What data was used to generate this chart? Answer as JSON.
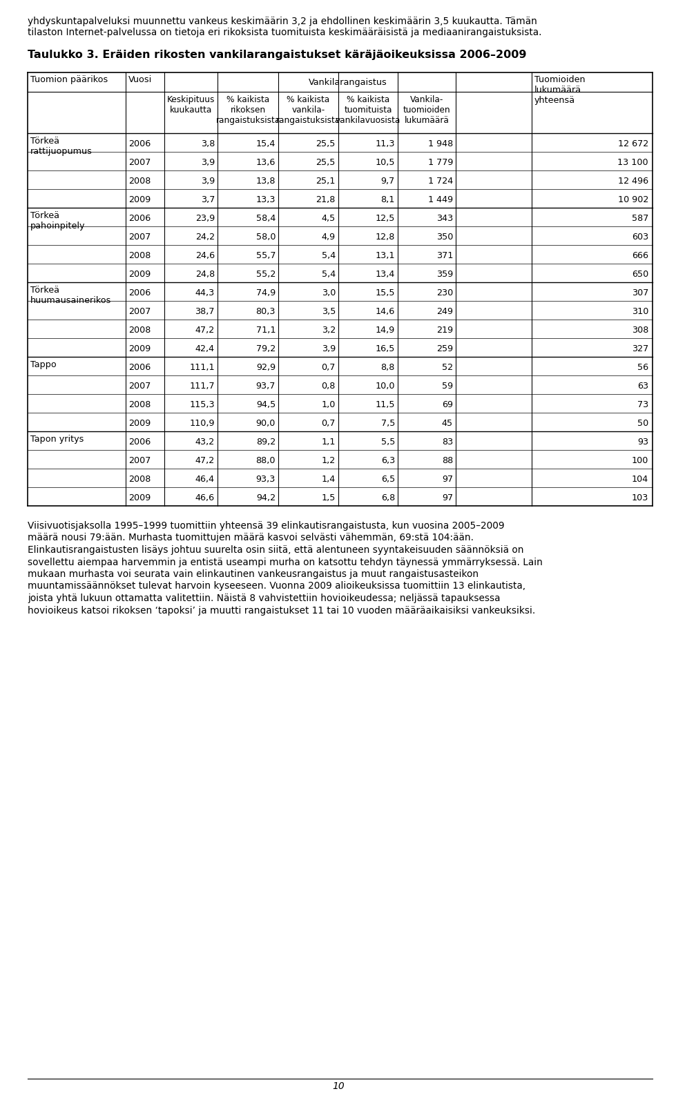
{
  "intro_text_line1": "yhdyskuntapalveluksi muunnettu vankeus keskimäärin 3,2 ja ehdollinen keskimäärin 3,5 kuukautta. Tämän",
  "intro_text_line2": "tilaston Internet-palvelussa on tietoja eri rikoksista tuomituista keskimääräisistä ja mediaanirangaistuksista.",
  "table_title": "Taulukko 3. Eräiden rikosten vankilarangaistukset käräjäoikeuksissa 2006–2009",
  "vankilarangaistus_header": "Vankilarangaistus",
  "col0_header": "Tuomion päärikos",
  "col1_header": "Vuosi",
  "col2_header": "Keskipituus\nkuukautta",
  "col3_header": "% kaikista\nrikoksen\nrangaistuksista",
  "col4_header": "% kaikista\nvankila-\nrangaistuksista",
  "col5_header": "% kaikista\ntuomituista\nvankilavuosista",
  "col6_header": "Vankila-\ntuomioiden\nlukumäärä",
  "col7_header": "Tuomioiden\nlukumäärä\nyhteensä",
  "rows": [
    {
      "crime": "Törkeä\nrattijuopumus",
      "year": "2006",
      "v1": "3,8",
      "v2": "15,4",
      "v3": "25,5",
      "v4": "11,3",
      "v5": "1 948",
      "v6": "12 672"
    },
    {
      "crime": "",
      "year": "2007",
      "v1": "3,9",
      "v2": "13,6",
      "v3": "25,5",
      "v4": "10,5",
      "v5": "1 779",
      "v6": "13 100"
    },
    {
      "crime": "",
      "year": "2008",
      "v1": "3,9",
      "v2": "13,8",
      "v3": "25,1",
      "v4": "9,7",
      "v5": "1 724",
      "v6": "12 496"
    },
    {
      "crime": "",
      "year": "2009",
      "v1": "3,7",
      "v2": "13,3",
      "v3": "21,8",
      "v4": "8,1",
      "v5": "1 449",
      "v6": "10 902"
    },
    {
      "crime": "Törkeä\npahoinpitely",
      "year": "2006",
      "v1": "23,9",
      "v2": "58,4",
      "v3": "4,5",
      "v4": "12,5",
      "v5": "343",
      "v6": "587"
    },
    {
      "crime": "",
      "year": "2007",
      "v1": "24,2",
      "v2": "58,0",
      "v3": "4,9",
      "v4": "12,8",
      "v5": "350",
      "v6": "603"
    },
    {
      "crime": "",
      "year": "2008",
      "v1": "24,6",
      "v2": "55,7",
      "v3": "5,4",
      "v4": "13,1",
      "v5": "371",
      "v6": "666"
    },
    {
      "crime": "",
      "year": "2009",
      "v1": "24,8",
      "v2": "55,2",
      "v3": "5,4",
      "v4": "13,4",
      "v5": "359",
      "v6": "650"
    },
    {
      "crime": "Törkeä\nhuumausainerikos",
      "year": "2006",
      "v1": "44,3",
      "v2": "74,9",
      "v3": "3,0",
      "v4": "15,5",
      "v5": "230",
      "v6": "307"
    },
    {
      "crime": "",
      "year": "2007",
      "v1": "38,7",
      "v2": "80,3",
      "v3": "3,5",
      "v4": "14,6",
      "v5": "249",
      "v6": "310"
    },
    {
      "crime": "",
      "year": "2008",
      "v1": "47,2",
      "v2": "71,1",
      "v3": "3,2",
      "v4": "14,9",
      "v5": "219",
      "v6": "308"
    },
    {
      "crime": "",
      "year": "2009",
      "v1": "42,4",
      "v2": "79,2",
      "v3": "3,9",
      "v4": "16,5",
      "v5": "259",
      "v6": "327"
    },
    {
      "crime": "Tappo",
      "year": "2006",
      "v1": "111,1",
      "v2": "92,9",
      "v3": "0,7",
      "v4": "8,8",
      "v5": "52",
      "v6": "56"
    },
    {
      "crime": "",
      "year": "2007",
      "v1": "111,7",
      "v2": "93,7",
      "v3": "0,8",
      "v4": "10,0",
      "v5": "59",
      "v6": "63"
    },
    {
      "crime": "",
      "year": "2008",
      "v1": "115,3",
      "v2": "94,5",
      "v3": "1,0",
      "v4": "11,5",
      "v5": "69",
      "v6": "73"
    },
    {
      "crime": "",
      "year": "2009",
      "v1": "110,9",
      "v2": "90,0",
      "v3": "0,7",
      "v4": "7,5",
      "v5": "45",
      "v6": "50"
    },
    {
      "crime": "Tapon yritys",
      "year": "2006",
      "v1": "43,2",
      "v2": "89,2",
      "v3": "1,1",
      "v4": "5,5",
      "v5": "83",
      "v6": "93"
    },
    {
      "crime": "",
      "year": "2007",
      "v1": "47,2",
      "v2": "88,0",
      "v3": "1,2",
      "v4": "6,3",
      "v5": "88",
      "v6": "100"
    },
    {
      "crime": "",
      "year": "2008",
      "v1": "46,4",
      "v2": "93,3",
      "v3": "1,4",
      "v4": "6,5",
      "v5": "97",
      "v6": "104"
    },
    {
      "crime": "",
      "year": "2009",
      "v1": "46,6",
      "v2": "94,2",
      "v3": "1,5",
      "v4": "6,8",
      "v5": "97",
      "v6": "103"
    }
  ],
  "footer_lines": [
    "Viisivuotisjaksolla 1995–1999 tuomittiin yhteensä 39 elinkautisrangaistusta, kun vuosina 2005–2009",
    "määrä nousi 79:ään. Murhasta tuomittujen määrä kasvoi selvästi vähemmän, 69:stä 104:ään.",
    "Elinkautisrangaistusten lisäys johtuu suurelta osin siitä, että alentuneen syyntakeisuuden säännöksiä on",
    "sovellettu aiempaa harvemmin ja entistä useampi murha on katsottu tehdyn täynessä ymmärryksessä. Lain",
    "mukaan murhasta voi seurata vain elinkautinen vankeusrangaistus ja muut rangaistusasteikon",
    "muuntamissäännökset tulevat harvoin kyseeseen. Vuonna 2009 alioikeuksissa tuomittiin 13 elinkautista,",
    "joista yhtä lukuun ottamatta valitettiin. Näistä 8 vahvistettiin hovioikeudessa; neljässä tapauksessa",
    "hovioikeus katsoi rikoksen ‘tapoksi’ ja muutti rangaistukset 11 tai 10 vuoden määräaikaisiksi vankeuksiksi."
  ],
  "page_number": "10",
  "bg_color": "#ffffff"
}
